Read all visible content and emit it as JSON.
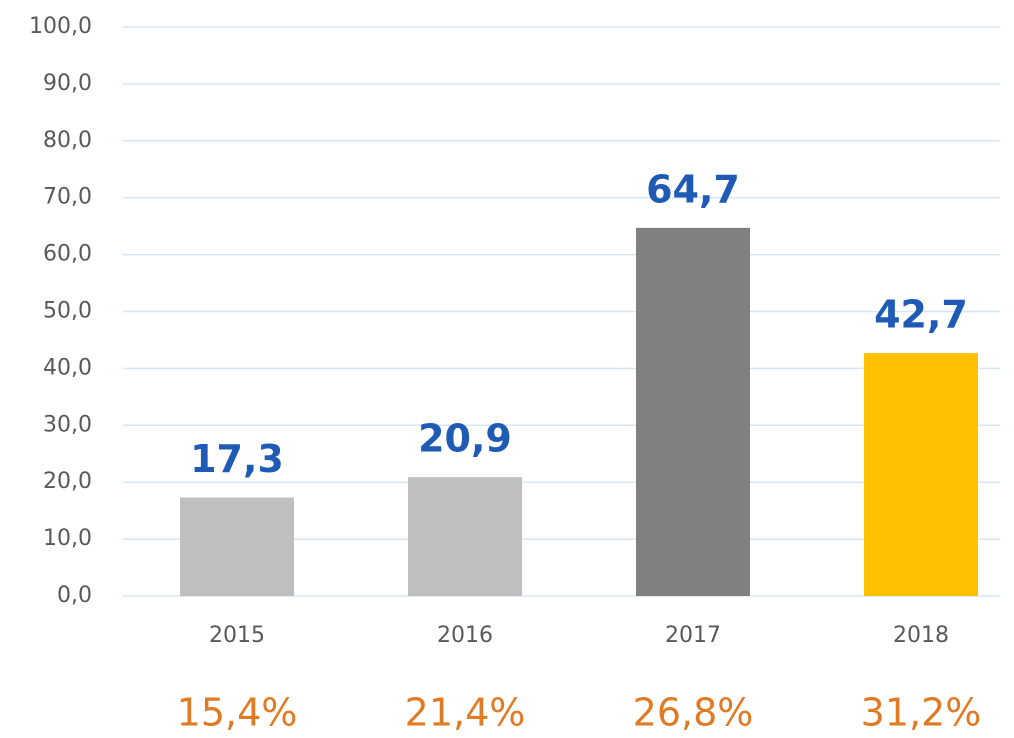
{
  "chart_data": {
    "type": "bar",
    "categories": [
      "2015",
      "2016",
      "2017",
      "2018"
    ],
    "values": [
      17.3,
      20.9,
      64.7,
      42.7
    ],
    "value_labels": [
      "17,3",
      "20,9",
      "64,7",
      "42,7"
    ],
    "colors": [
      "#bfbfbf",
      "#bfbfbf",
      "#808080",
      "#ffc000"
    ],
    "bottom_values": [
      15.4,
      21.4,
      26.8,
      31.2
    ],
    "bottom_labels": [
      "15,4%",
      "21,4%",
      "26,8%",
      "31,2%"
    ],
    "ylim": [
      0,
      100
    ],
    "yticks": [
      {
        "value": 0,
        "label": "0,0"
      },
      {
        "value": 10,
        "label": "10,0"
      },
      {
        "value": 20,
        "label": "20,0"
      },
      {
        "value": 30,
        "label": "30,0"
      },
      {
        "value": 40,
        "label": "40,0"
      },
      {
        "value": 50,
        "label": "50,0"
      },
      {
        "value": 60,
        "label": "60,0"
      },
      {
        "value": 70,
        "label": "70,0"
      },
      {
        "value": 80,
        "label": "80,0"
      },
      {
        "value": 90,
        "label": "90,0"
      },
      {
        "value": 100,
        "label": "100,0"
      }
    ],
    "grid": true
  }
}
